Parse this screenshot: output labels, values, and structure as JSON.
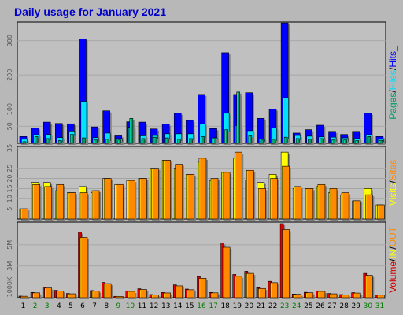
{
  "title": "Daily usage for January 2021",
  "colors": {
    "background": "#b8b8b8",
    "plot_background": "#c0c0c0",
    "title": "#0000cc",
    "hits": "#0000ff",
    "files": "#00e0ff",
    "pages": "#009a6a",
    "visits": "#ffff00",
    "sites": "#ff8a00",
    "kbytes": "#d40000",
    "weekend_label": "#007a00",
    "weekday_label": "#000000"
  },
  "chart_data": [
    {
      "type": "bar",
      "name": "hits-files-pages",
      "categories": [
        "1",
        "2",
        "3",
        "4",
        "5",
        "6",
        "7",
        "8",
        "9",
        "10",
        "11",
        "12",
        "13",
        "14",
        "15",
        "16",
        "17",
        "18",
        "19",
        "20",
        "21",
        "22",
        "23",
        "24",
        "25",
        "26",
        "27",
        "28",
        "29",
        "30",
        "31"
      ],
      "ylim": [
        0,
        350
      ],
      "ytick_labels": [
        {
          "value": 50,
          "label": "50"
        },
        {
          "value": 100,
          "label": "100"
        },
        {
          "value": 200,
          "label": "200"
        },
        {
          "value": 300,
          "label": "300"
        }
      ],
      "series": [
        {
          "name": "Hits",
          "color_key": "hits",
          "values": [
            20,
            45,
            62,
            58,
            57,
            305,
            48,
            95,
            22,
            63,
            62,
            42,
            56,
            88,
            67,
            143,
            43,
            265,
            143,
            148,
            73,
            100,
            352,
            30,
            40,
            53,
            35,
            26,
            35,
            88,
            20
          ]
        },
        {
          "name": "Files",
          "color_key": "files",
          "values": [
            12,
            25,
            26,
            17,
            36,
            123,
            17,
            30,
            14,
            47,
            22,
            23,
            28,
            28,
            28,
            56,
            16,
            88,
            52,
            37,
            13,
            45,
            133,
            23,
            21,
            19,
            18,
            16,
            14,
            25,
            13
          ]
        },
        {
          "name": "Pages",
          "color_key": "pages",
          "values": [
            5,
            20,
            14,
            8,
            26,
            16,
            10,
            12,
            10,
            73,
            14,
            18,
            16,
            12,
            14,
            20,
            16,
            40,
            150,
            22,
            10,
            12,
            18,
            14,
            12,
            14,
            10,
            10,
            8,
            20,
            9
          ]
        }
      ],
      "legend": [
        "Pages",
        "/",
        "Files",
        "/",
        "Hits",
        "_"
      ]
    },
    {
      "type": "bar",
      "name": "visits-sites",
      "categories": [
        "1",
        "2",
        "3",
        "4",
        "5",
        "6",
        "7",
        "8",
        "9",
        "10",
        "11",
        "12",
        "13",
        "14",
        "15",
        "16",
        "17",
        "18",
        "19",
        "20",
        "21",
        "22",
        "23",
        "24",
        "25",
        "26",
        "27",
        "28",
        "29",
        "30",
        "31"
      ],
      "ylim": [
        0,
        35
      ],
      "ytick_labels": [
        {
          "value": 5,
          "label": "5"
        },
        {
          "value": 10,
          "label": "10"
        },
        {
          "value": 15,
          "label": "15"
        },
        {
          "value": 20,
          "label": "20"
        },
        {
          "value": 25,
          "label": "25"
        },
        {
          "value": 35,
          "label": "35"
        }
      ],
      "series": [
        {
          "name": "Visits",
          "color_key": "visits",
          "values": [
            5,
            18,
            18,
            14,
            13,
            16,
            13,
            20,
            17,
            19,
            20,
            25,
            29,
            25,
            22,
            28,
            19,
            23,
            30,
            19,
            18,
            22,
            33,
            15,
            15,
            16,
            13,
            12,
            9,
            15,
            7
          ]
        },
        {
          "name": "Sites",
          "color_key": "sites",
          "values": [
            5,
            17,
            16,
            17,
            13,
            13,
            14,
            20,
            17,
            19,
            20,
            25,
            29,
            27,
            22,
            30,
            20,
            23,
            33,
            24,
            15,
            20,
            26,
            16,
            15,
            17,
            15,
            13,
            9,
            12,
            7
          ]
        }
      ],
      "legend": [
        "Visits",
        "/",
        "Sites"
      ]
    },
    {
      "type": "bar",
      "name": "kbytes-in-out",
      "categories": [
        "1",
        "2",
        "3",
        "4",
        "5",
        "6",
        "7",
        "8",
        "9",
        "10",
        "11",
        "12",
        "13",
        "14",
        "15",
        "16",
        "17",
        "18",
        "19",
        "20",
        "21",
        "22",
        "23",
        "24",
        "25",
        "26",
        "27",
        "28",
        "29",
        "30",
        "31"
      ],
      "ylim": [
        0,
        7000
      ],
      "ytick_labels": [
        {
          "value": 1000,
          "label": "1000K"
        },
        {
          "value": 3000,
          "label": "3M"
        },
        {
          "value": 5000,
          "label": "5M"
        }
      ],
      "series": [
        {
          "name": "Volume",
          "color_key": "kbytes",
          "values": [
            150,
            500,
            1000,
            700,
            400,
            6200,
            680,
            1450,
            130,
            650,
            850,
            300,
            490,
            1220,
            820,
            2000,
            500,
            5180,
            2200,
            2500,
            950,
            1550,
            7000,
            350,
            510,
            650,
            400,
            300,
            480,
            2300,
            260
          ]
        }
      ],
      "legend": [
        "Volume",
        "/",
        "IN",
        "/",
        "OUT"
      ]
    }
  ],
  "weekend_days": [
    2,
    3,
    9,
    10,
    16,
    17,
    23,
    24,
    30,
    31
  ]
}
